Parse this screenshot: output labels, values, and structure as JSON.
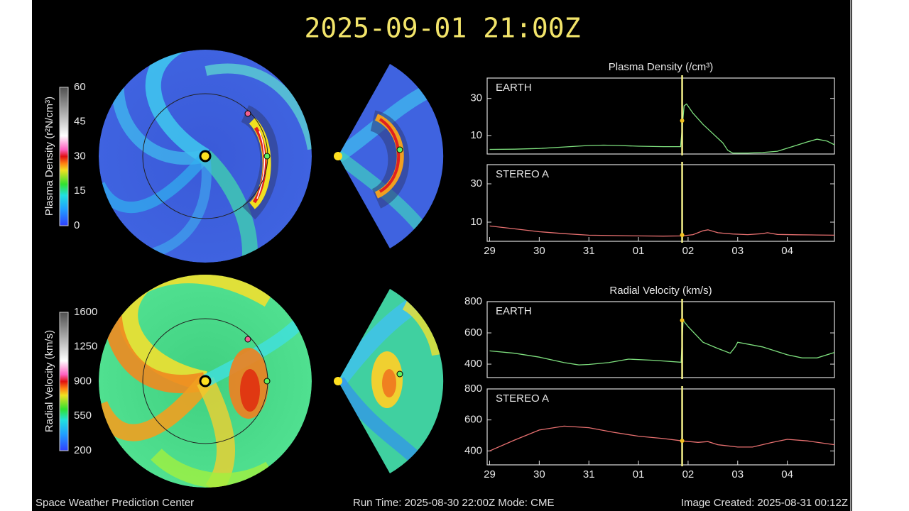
{
  "header": {
    "title": "2025-09-01 21:00Z"
  },
  "footer": {
    "left": "Space Weather Prediction Center",
    "center": "Run Time: 2025-08-30 22:00Z   Mode: CME",
    "right": "Image Created: 2025-08-31 00:12Z"
  },
  "colorbars": [
    {
      "label": "Plasma Density (r²N/cm³)",
      "lim": [
        0,
        60
      ],
      "ticks": [
        0,
        15,
        30,
        45,
        60
      ]
    },
    {
      "label": "Radial Velocity (km/s)",
      "lim": [
        200,
        1600
      ],
      "ticks": [
        200,
        550,
        900,
        1250,
        1600
      ]
    }
  ],
  "chart_data": [
    {
      "type": "line",
      "title": "Plasma Density (/cm³)",
      "xlim": [
        -0.05,
        6.95
      ],
      "ylim": [
        0,
        41
      ],
      "yticks": [
        10,
        30
      ],
      "x": [
        0,
        0.5,
        1,
        1.5,
        2,
        2.3,
        2.6,
        3,
        3.5,
        3.85,
        3.92,
        3.97,
        4.1,
        4.3,
        4.5,
        4.7,
        4.8,
        4.9,
        5.2,
        5.5,
        5.8,
        6.1,
        6.4,
        6.6,
        6.8,
        6.95
      ],
      "series": [
        {
          "name": "EARTH",
          "color": "#7ee07e",
          "values": [
            2.5,
            2.6,
            3.0,
            3.8,
            4.6,
            4.8,
            4.6,
            4.2,
            4.0,
            4.0,
            26,
            27,
            22,
            16,
            11,
            6,
            2,
            0.5,
            0.5,
            0.8,
            1.5,
            4,
            6.5,
            8,
            7,
            5
          ]
        }
      ],
      "marker": {
        "x": 3.88,
        "value": 18,
        "color": "#f4f08a"
      }
    },
    {
      "type": "line",
      "xlim": [
        -0.05,
        6.95
      ],
      "ylim": [
        0,
        40
      ],
      "yticks": [
        10,
        30
      ],
      "x": [
        0,
        0.5,
        1,
        1.5,
        2,
        2.5,
        3,
        3.5,
        3.88,
        4.1,
        4.3,
        4.4,
        4.6,
        4.9,
        5.2,
        5.5,
        5.6,
        5.8,
        6.2,
        6.6,
        6.95
      ],
      "series": [
        {
          "name": "STEREO A",
          "color": "#e87070",
          "values": [
            8,
            6.5,
            5,
            4,
            3.2,
            3,
            2.8,
            2.7,
            2.8,
            3.5,
            5.5,
            6,
            4.5,
            3.8,
            3.5,
            4,
            4.5,
            3.6,
            3.4,
            3.3,
            3.2
          ]
        }
      ],
      "marker": {
        "x": 3.88,
        "value": 3.3,
        "color": "#f4f08a"
      },
      "xticks": [
        {
          "value": 0,
          "label": "29"
        },
        {
          "value": 1,
          "label": "30"
        },
        {
          "value": 2,
          "label": "31"
        },
        {
          "value": 3,
          "label": "01"
        },
        {
          "value": 4,
          "label": "02"
        },
        {
          "value": 5,
          "label": "03"
        },
        {
          "value": 6,
          "label": "04"
        }
      ]
    },
    {
      "type": "line",
      "title": "Radial Velocity (km/s)",
      "xlim": [
        -0.05,
        6.95
      ],
      "ylim": [
        314,
        800
      ],
      "yticks": [
        400,
        600,
        800
      ],
      "x": [
        0,
        0.5,
        1,
        1.5,
        1.8,
        2.0,
        2.4,
        2.8,
        3.3,
        3.86,
        3.9,
        4.0,
        4.3,
        4.6,
        4.85,
        4.95,
        5.0,
        5.5,
        6.0,
        6.3,
        6.6,
        6.95
      ],
      "series": [
        {
          "name": "EARTH",
          "color": "#7ee07e",
          "values": [
            485,
            470,
            445,
            410,
            395,
            398,
            410,
            432,
            425,
            412,
            680,
            640,
            540,
            500,
            470,
            510,
            540,
            510,
            460,
            440,
            440,
            475
          ]
        }
      ],
      "marker": {
        "x": 3.88,
        "value": 680,
        "color": "#f4f08a"
      }
    },
    {
      "type": "line",
      "xlim": [
        -0.05,
        6.95
      ],
      "ylim": [
        310,
        800
      ],
      "yticks": [
        400,
        600,
        800
      ],
      "x": [
        0,
        0.5,
        1,
        1.5,
        2,
        2.5,
        3,
        3.5,
        3.88,
        4.2,
        4.4,
        4.6,
        5.0,
        5.3,
        5.7,
        6.0,
        6.4,
        6.95
      ],
      "series": [
        {
          "name": "STEREO A",
          "color": "#e87070",
          "values": [
            400,
            470,
            535,
            560,
            550,
            520,
            495,
            480,
            465,
            455,
            460,
            440,
            425,
            425,
            455,
            475,
            465,
            440
          ]
        }
      ],
      "marker": {
        "x": 3.88,
        "value": 465,
        "color": "#f4f08a"
      },
      "xticks": [
        {
          "value": 0,
          "label": "29"
        },
        {
          "value": 1,
          "label": "30"
        },
        {
          "value": 2,
          "label": "31"
        },
        {
          "value": 3,
          "label": "01"
        },
        {
          "value": 4,
          "label": "02"
        },
        {
          "value": 5,
          "label": "03"
        },
        {
          "value": 6,
          "label": "04"
        }
      ]
    }
  ]
}
